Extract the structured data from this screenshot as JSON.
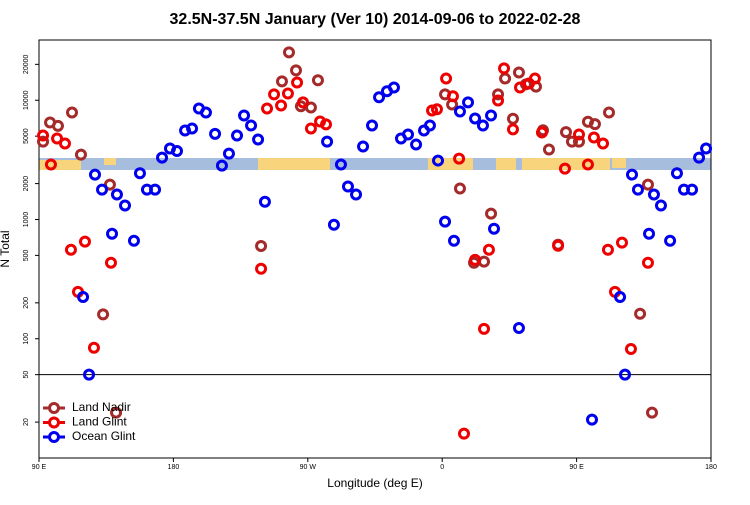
{
  "chart_data": {
    "type": "scatter",
    "title": "32.5N-37.5N January (Ver 10)   2014-09-06 to 2022-02-28",
    "x_label": "Longitude (deg E)",
    "y_label": "N Total",
    "xlim": [
      90,
      540
    ],
    "ylim": [
      10,
      32000
    ],
    "log_y": true,
    "xticks": [
      {
        "value": 90,
        "label": "90 E"
      },
      180,
      {
        "value": 270,
        "label": "90 W"
      },
      {
        "value": 360,
        "label": "0"
      },
      {
        "value": 450,
        "label": "90 E"
      },
      {
        "value": 540,
        "label": "180"
      }
    ],
    "yticks": [
      20,
      50,
      100,
      200,
      500,
      1000,
      2000,
      5000,
      10000,
      20000
    ],
    "hline": 50,
    "legend": "bottom-left",
    "series": [
      {
        "name": "Land Nadir",
        "color": "#a52a2a",
        "x": [
          92.7,
          97.4,
          102.7,
          112.1,
          118.1,
          132.9,
          137.5,
          141.6,
          238.7,
          252.7,
          257.4,
          262.1,
          265.4,
          272.1,
          276.8,
          361.9,
          366.6,
          371.9,
          381.3,
          388.0,
          392.7,
          397.4,
          402.1,
          407.4,
          411.4,
          416.1,
          422.8,
          427.5,
          431.5,
          437.6,
          442.9,
          446.9,
          451.6,
          457.6,
          462.3,
          471.7,
          492.5,
          497.8,
          500.5
        ],
        "values": [
          4500,
          6500,
          6100,
          7900,
          3500,
          160,
          1960,
          24,
          600,
          14400,
          25200,
          17800,
          8900,
          8700,
          14700,
          11200,
          9200,
          1820,
          434,
          443,
          1120,
          11200,
          15200,
          7000,
          17100,
          13600,
          13000,
          5600,
          3860,
          614,
          5400,
          4500,
          4500,
          6600,
          6300,
          7900,
          162,
          1960,
          24
        ]
      },
      {
        "name": "Land Glint",
        "color": "#ee0000",
        "x": [
          92.7,
          98.0,
          102.1,
          107.4,
          111.4,
          116.1,
          120.8,
          126.8,
          138.2,
          238.7,
          242.7,
          247.4,
          252.1,
          256.7,
          262.8,
          266.8,
          272.1,
          278.2,
          282.2,
          353.2,
          356.5,
          362.6,
          367.2,
          371.3,
          374.6,
          382.0,
          388.0,
          391.3,
          397.4,
          401.4,
          407.4,
          412.1,
          418.1,
          422.1,
          426.8,
          437.6,
          442.2,
          451.6,
          457.6,
          461.6,
          467.7,
          471.0,
          475.7,
          480.4,
          486.4,
          497.8
        ],
        "values": [
          5060,
          2890,
          4780,
          4340,
          557,
          247,
          652,
          84,
          434,
          386,
          8530,
          11200,
          9040,
          11400,
          14100,
          9590,
          5800,
          6640,
          6270,
          8210,
          8400,
          15200,
          10800,
          3240,
          16,
          459,
          121,
          557,
          9950,
          18500,
          5700,
          12800,
          13800,
          15200,
          5370,
          602,
          2670,
          5160,
          2890,
          4870,
          4340,
          557,
          247,
          640,
          82,
          434
        ]
      },
      {
        "name": "Ocean Glint",
        "color": "#0000ee",
        "x": [
          119.5,
          123.5,
          127.5,
          132.2,
          138.9,
          142.2,
          147.6,
          153.6,
          157.6,
          162.3,
          167.7,
          172.4,
          177.7,
          182.4,
          187.8,
          192.5,
          197.1,
          201.8,
          207.9,
          212.5,
          217.2,
          222.6,
          227.3,
          232.0,
          236.7,
          241.3,
          282.9,
          287.5,
          292.2,
          296.9,
          302.3,
          307.0,
          313.0,
          317.7,
          323.0,
          327.7,
          332.4,
          337.1,
          342.5,
          347.8,
          351.8,
          357.2,
          361.9,
          367.9,
          371.9,
          377.3,
          382.0,
          387.3,
          392.7,
          394.7,
          411.4,
          460.3,
          482.4,
          479.1,
          487.1,
          491.1,
          498.5,
          501.8,
          506.5,
          512.6,
          517.2,
          521.9,
          527.3,
          532.0,
          536.7
        ],
        "values": [
          224,
          50,
          2380,
          1780,
          760,
          1620,
          1310,
          664,
          2440,
          1780,
          1780,
          3300,
          3940,
          3750,
          5570,
          5800,
          8530,
          7900,
          5220,
          2830,
          3570,
          5060,
          7450,
          6140,
          4690,
          1410,
          4500,
          904,
          2890,
          1890,
          1620,
          4090,
          6140,
          10600,
          11900,
          12800,
          4780,
          5160,
          4250,
          5570,
          6140,
          3120,
          960,
          664,
          8050,
          9590,
          7030,
          6140,
          7450,
          837,
          123,
          21,
          50,
          224,
          2380,
          1780,
          760,
          1620,
          1310,
          664,
          2440,
          1780,
          1780,
          3300,
          3940
        ]
      }
    ]
  }
}
